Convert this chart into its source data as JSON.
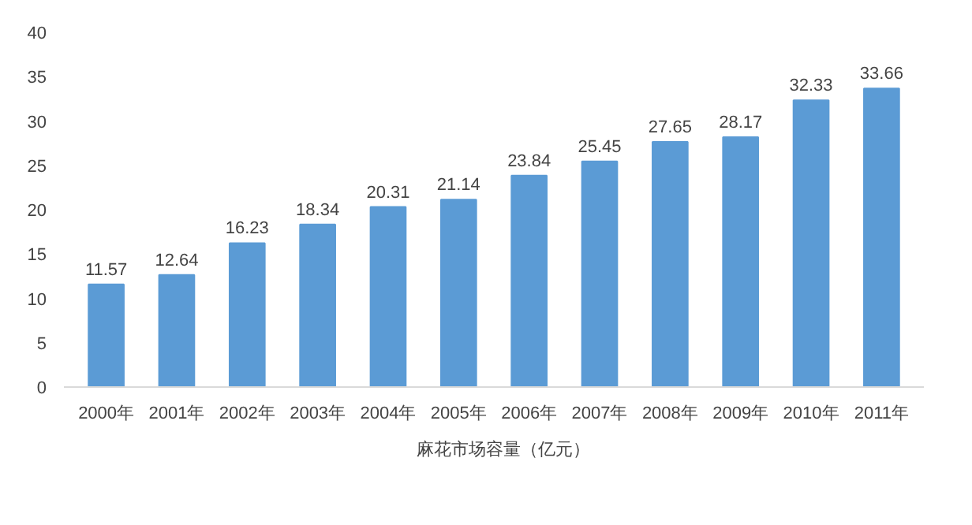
{
  "chart_data": {
    "type": "bar",
    "categories": [
      "2000年",
      "2001年",
      "2002年",
      "2003年",
      "2004年",
      "2005年",
      "2006年",
      "2007年",
      "2008年",
      "2009年",
      "2010年",
      "2011年"
    ],
    "series": [
      {
        "name": "麻花市场容量（亿元）",
        "color": "#5b9bd5",
        "values": [
          11.57,
          12.64,
          16.23,
          18.34,
          20.31,
          21.14,
          23.84,
          25.45,
          27.65,
          28.17,
          32.33,
          33.66
        ]
      }
    ],
    "ylim": [
      0,
      40
    ],
    "yticks": [
      0,
      5,
      10,
      15,
      20,
      25,
      30,
      35,
      40
    ],
    "grid": false,
    "legend": "bottom",
    "data_labels": true
  }
}
